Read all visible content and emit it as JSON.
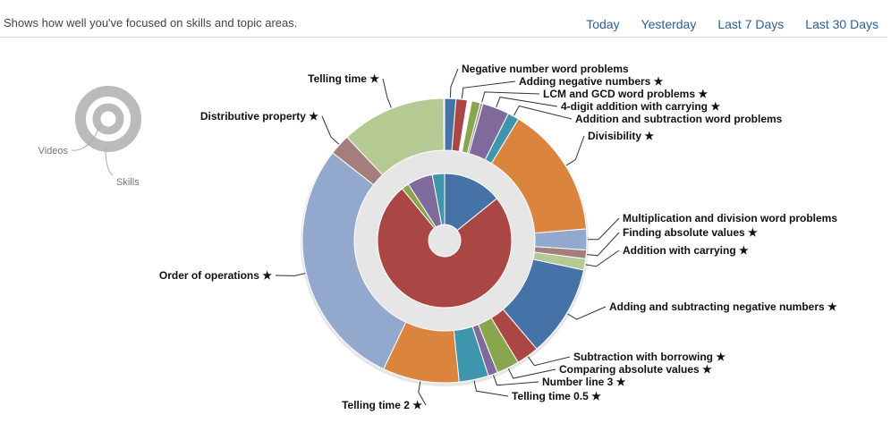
{
  "header": {
    "subtitle": "Shows how well you've focused on skills and topic areas.",
    "periods": [
      "Today",
      "Yesterday",
      "Last 7 Days",
      "Last 30 Days"
    ]
  },
  "legend": {
    "videos_label": "Videos",
    "skills_label": "Skills",
    "color": "#bbbbbb"
  },
  "chart_data": {
    "type": "pie",
    "inner_ring": {
      "name": "Videos",
      "values": [
        12.5,
        65.9,
        1.6,
        5.4,
        2.6
      ],
      "colors": [
        "#4572a7",
        "#aa4643",
        "#89a54e",
        "#80699b",
        "#3d96ae"
      ]
    },
    "outer_ring": {
      "name": "Skills",
      "start_deg": 0,
      "segments": [
        {
          "label": "Negative number word problems",
          "value": 1.3,
          "color": "#4572a7"
        },
        {
          "label": "Adding negative numbers ★",
          "value": 1.3,
          "color": "#aa4643"
        },
        {
          "label": "",
          "value": 0.5,
          "color": "#ffffff"
        },
        {
          "label": "",
          "value": 1.0,
          "color": "#89a54e"
        },
        {
          "label": "LCM and GCD word problems ★",
          "value": 0.3,
          "color": "#9b9b9b"
        },
        {
          "label": "4-digit addition with carrying ★",
          "value": 3.1,
          "color": "#80699b"
        },
        {
          "label": "Addition and subtraction word problems",
          "value": 1.3,
          "color": "#3d96ae"
        },
        {
          "label": "Divisibility ★",
          "value": 15.2,
          "color": "#db843d"
        },
        {
          "label": "Multiplication and division word problems",
          "value": 2.4,
          "color": "#92a8cd"
        },
        {
          "label": "Finding absolute values ★",
          "value": 1.0,
          "color": "#a47d7c"
        },
        {
          "label": "Addition with carrying ★",
          "value": 1.3,
          "color": "#b5ca92"
        },
        {
          "label": "Adding and subtracting negative numbers ★",
          "value": 10.6,
          "color": "#4572a7"
        },
        {
          "label": "Subtraction with borrowing ★",
          "value": 2.6,
          "color": "#aa4643"
        },
        {
          "label": "Comparing absolute values ★",
          "value": 2.6,
          "color": "#89a54e"
        },
        {
          "label": "Number line 3 ★",
          "value": 1.1,
          "color": "#80699b"
        },
        {
          "label": "Telling time 0.5 ★",
          "value": 3.4,
          "color": "#3d96ae"
        },
        {
          "label": "Telling time 2 ★",
          "value": 8.8,
          "color": "#db843d"
        },
        {
          "label": "Order of operations ★",
          "value": 28.9,
          "color": "#92a8cd"
        },
        {
          "label": "Distributive property ★",
          "value": 2.4,
          "color": "#a47d7c"
        },
        {
          "label": "Telling time ★",
          "value": 12.1,
          "color": "#b5ca92"
        },
        {
          "label": "",
          "value": 0.1,
          "color": "#4572a7"
        }
      ]
    }
  }
}
